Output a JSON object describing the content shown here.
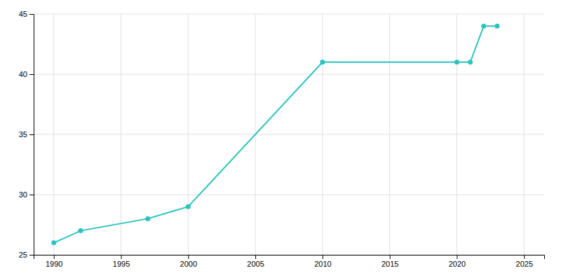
{
  "chart_data": {
    "type": "line",
    "x": [
      1990,
      1992,
      1997,
      2000,
      2010,
      2020,
      2021,
      2022,
      2023
    ],
    "values": [
      26,
      27,
      28,
      29,
      41,
      41,
      41,
      44,
      44
    ],
    "color": "#29c4c0",
    "marker": "circle",
    "xlim": [
      1988.5,
      2026.5
    ],
    "ylim": [
      25,
      45
    ],
    "xticks": [
      1990,
      1995,
      2000,
      2005,
      2010,
      2015,
      2020,
      2025
    ],
    "yticks": [
      25,
      30,
      35,
      40,
      45
    ],
    "grid": true
  }
}
